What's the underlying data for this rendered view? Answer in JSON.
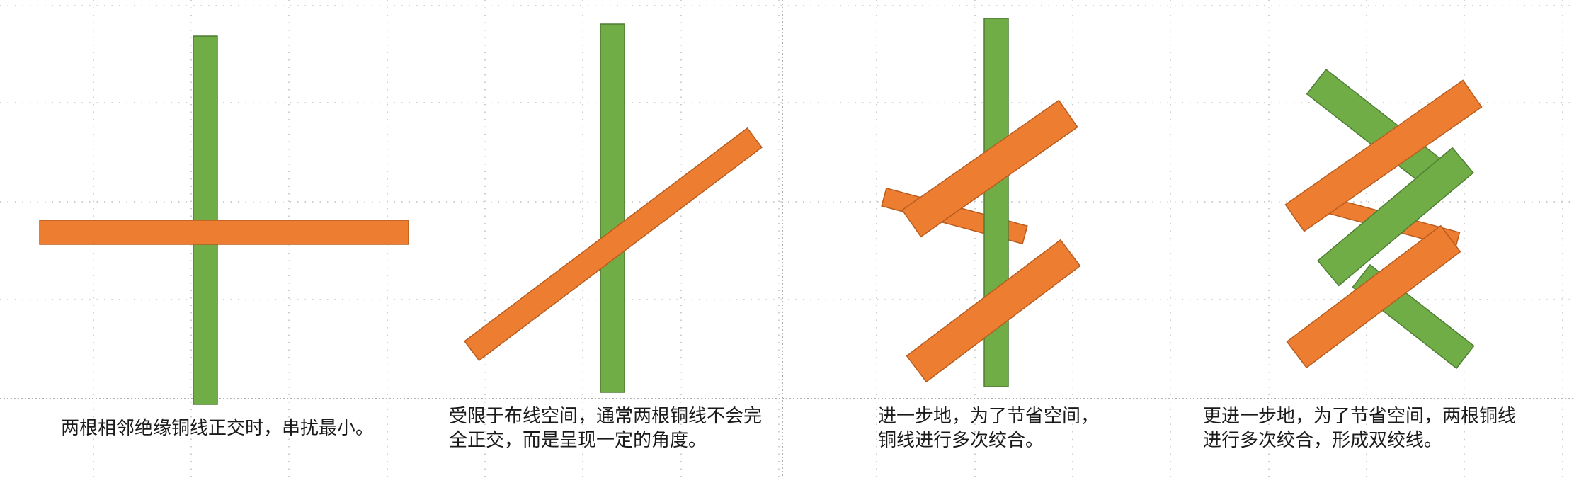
{
  "colors": {
    "wire_a": "#70ad47",
    "wire_a_stroke": "#4e7d33",
    "wire_b": "#ed7d31",
    "wire_b_stroke": "#b85c1e",
    "grid": "#bfbfbf",
    "text": "#1a1a1a"
  },
  "panels": [
    {
      "caption_lines": [
        "两根相邻绝缘铜线正交时，串扰最小。"
      ]
    },
    {
      "caption_lines": [
        "受限于布线空间，通常两根铜线不会完",
        "全正交，而是呈现一定的角度。"
      ]
    },
    {
      "caption_lines": [
        "进一步地，为了节省空间，",
        "铜线进行多次绞合。"
      ]
    },
    {
      "caption_lines": [
        "更进一步地，为了节省空间，两根铜线",
        "进行多次绞合，形成双绞线。"
      ]
    }
  ]
}
